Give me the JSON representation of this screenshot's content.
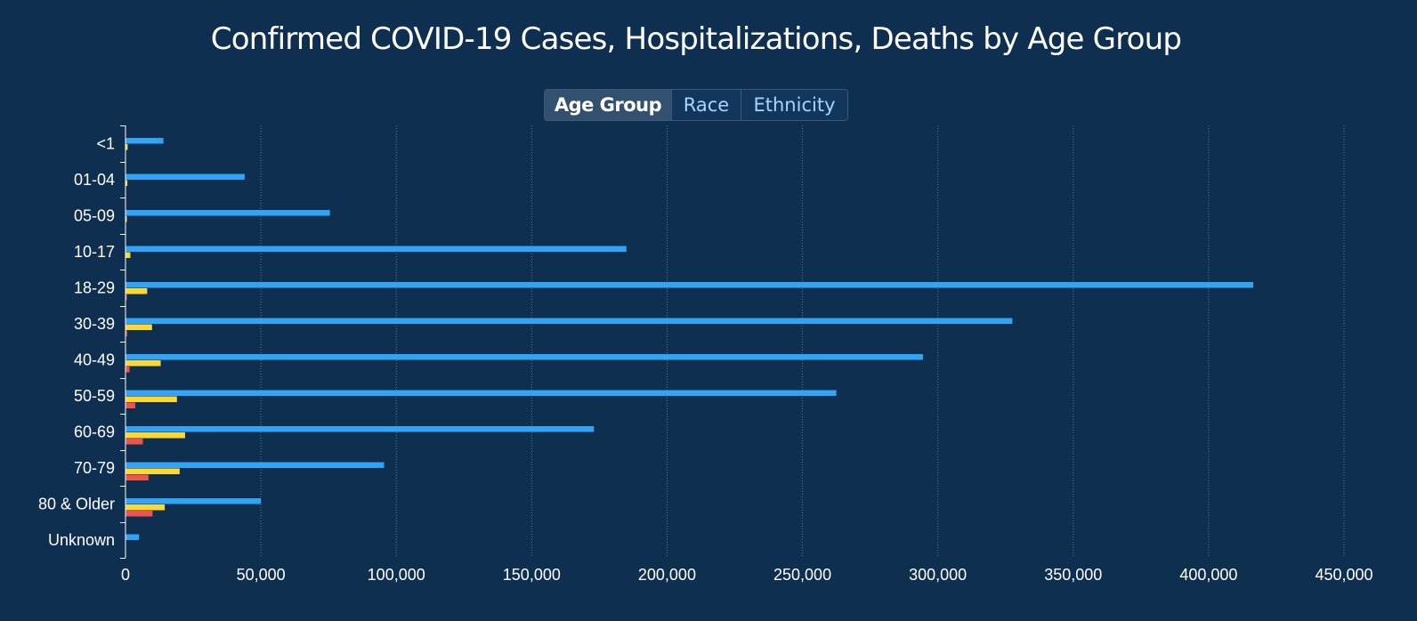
{
  "header": {
    "title": "Confirmed COVID-19 Cases, Hospitalizations, Deaths by Age Group"
  },
  "tabs": [
    {
      "label": "Age Group",
      "active": true
    },
    {
      "label": "Race",
      "active": false
    },
    {
      "label": "Ethnicity",
      "active": false
    }
  ],
  "colors": {
    "background": "#0f2f51",
    "cases": "#33a3f5",
    "hospitalizations": "#fdd835",
    "deaths": "#ef5350",
    "grid": "#5d7a96",
    "axis": "#ffffff"
  },
  "chart_data": {
    "type": "bar",
    "orientation": "horizontal",
    "title": "Confirmed COVID-19 Cases, Hospitalizations, Deaths by Age Group",
    "categories": [
      "<1",
      "01-04",
      "05-09",
      "10-17",
      "18-29",
      "30-39",
      "40-49",
      "50-59",
      "60-69",
      "70-79",
      "80 & Older",
      "Unknown"
    ],
    "series": [
      {
        "name": "Cases",
        "color": "#33a3f5",
        "values": [
          14000,
          44000,
          75500,
          185000,
          416500,
          327500,
          294500,
          262500,
          173000,
          95500,
          50000,
          5000
        ]
      },
      {
        "name": "Hospitalizations",
        "color": "#fdd835",
        "values": [
          800,
          700,
          300,
          1800,
          8000,
          9800,
          13000,
          19000,
          22000,
          20000,
          14500,
          0
        ]
      },
      {
        "name": "Deaths",
        "color": "#ef5350",
        "values": [
          0,
          0,
          0,
          0,
          200,
          600,
          1500,
          3600,
          6400,
          8500,
          10000,
          0
        ]
      }
    ],
    "xlim": [
      0,
      450000
    ],
    "xticks": [
      0,
      50000,
      100000,
      150000,
      200000,
      250000,
      300000,
      350000,
      400000,
      450000
    ],
    "xtick_labels": [
      "0",
      "50,000",
      "100,000",
      "150,000",
      "200,000",
      "250,000",
      "300,000",
      "350,000",
      "400,000",
      "450,000"
    ],
    "grid": "vertical dotted",
    "legend": "none"
  }
}
